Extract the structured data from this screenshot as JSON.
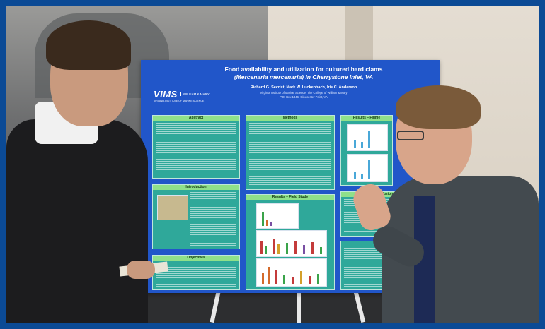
{
  "poster": {
    "title_line1": "Food availability and utilization for cultured hard clams",
    "title_line2": "(Mercenaria mercenaria) in Cherrystone Inlet, VA",
    "authors": "Richard G. Secrist, Mark W. Luckenbach, Iris C. Anderson",
    "affiliation_line1": "Virginia Institute of Marine Science, The College of William & Mary",
    "affiliation_line2": "P.O. Box 1346, Gloucester Point, VA",
    "logo_text": "VIMS",
    "logo_side": "WILLIAM & MARY",
    "logo_sub": "VIRGINIA INSTITUTE OF MARINE SCIENCE",
    "sections": {
      "abstract": "Abstract",
      "introduction": "Introduction",
      "objectives": "Objectives",
      "methods": "Methods",
      "results_field": "Results – Field Study",
      "results_flow": "Results – Flume",
      "conclusions": "Conclusions"
    }
  },
  "colors": {
    "frame": "#0b4a95",
    "poster_bg": "#2156c9",
    "section_bg": "#2fa89a",
    "section_header": "#8fe08a"
  }
}
